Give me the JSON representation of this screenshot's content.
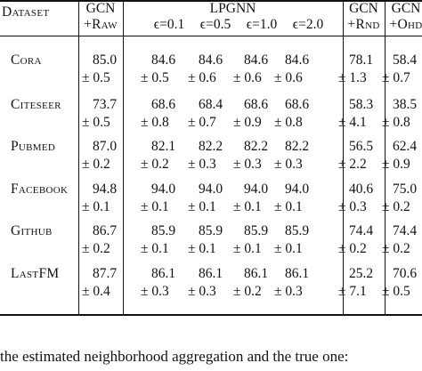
{
  "header": {
    "dataset": "Dataset",
    "gcn_raw_top": "GCN",
    "gcn_raw_bottom": "+Raw",
    "lpgnn": "LPGNN",
    "eps": [
      "ϵ=0.1",
      "ϵ=0.5",
      "ϵ=1.0",
      "ϵ=2.0"
    ],
    "gcn_rnd_top": "GCN",
    "gcn_rnd_bottom": "+Rnd",
    "gcn_ohd_top": "GCN",
    "gcn_ohd_bottom": "+Ohd"
  },
  "rows": [
    {
      "dataset": "Cora",
      "means": [
        "85.0",
        "84.6",
        "84.6",
        "84.6",
        "84.6",
        "78.1",
        "58.4"
      ],
      "stds": [
        "± 0.5",
        "± 0.5",
        "± 0.6",
        "± 0.6",
        "± 0.6",
        "± 1.3",
        "± 0.7"
      ]
    },
    {
      "dataset": "Citeseer",
      "means": [
        "73.7",
        "68.6",
        "68.4",
        "68.6",
        "68.6",
        "58.3",
        "38.5"
      ],
      "stds": [
        "± 0.5",
        "± 0.8",
        "± 0.7",
        "± 0.9",
        "± 0.8",
        "± 4.1",
        "± 0.8"
      ]
    },
    {
      "dataset": "Pubmed",
      "means": [
        "87.0",
        "82.1",
        "82.2",
        "82.2",
        "82.2",
        "56.5",
        "62.4"
      ],
      "stds": [
        "± 0.2",
        "± 0.2",
        "± 0.3",
        "± 0.3",
        "± 0.3",
        "± 2.2",
        "± 0.9"
      ]
    },
    {
      "dataset": "Facebook",
      "means": [
        "94.8",
        "94.0",
        "94.0",
        "94.0",
        "94.0",
        "40.6",
        "75.0"
      ],
      "stds": [
        "± 0.1",
        "± 0.1",
        "± 0.1",
        "± 0.1",
        "± 0.1",
        "± 0.3",
        "± 0.2"
      ]
    },
    {
      "dataset": "Github",
      "means": [
        "86.7",
        "85.9",
        "85.9",
        "85.9",
        "85.9",
        "74.4",
        "74.4"
      ],
      "stds": [
        "± 0.2",
        "± 0.1",
        "± 0.1",
        "± 0.1",
        "± 0.1",
        "± 0.2",
        "± 0.2"
      ]
    },
    {
      "dataset": "LastFM",
      "means": [
        "87.7",
        "86.1",
        "86.1",
        "86.1",
        "86.1",
        "25.2",
        "70.6"
      ],
      "stds": [
        "± 0.4",
        "± 0.3",
        "± 0.3",
        "± 0.2",
        "± 0.3",
        "± 7.1",
        "± 0.5"
      ]
    }
  ],
  "caption": "the estimated neighborhood aggregation and the true one:"
}
